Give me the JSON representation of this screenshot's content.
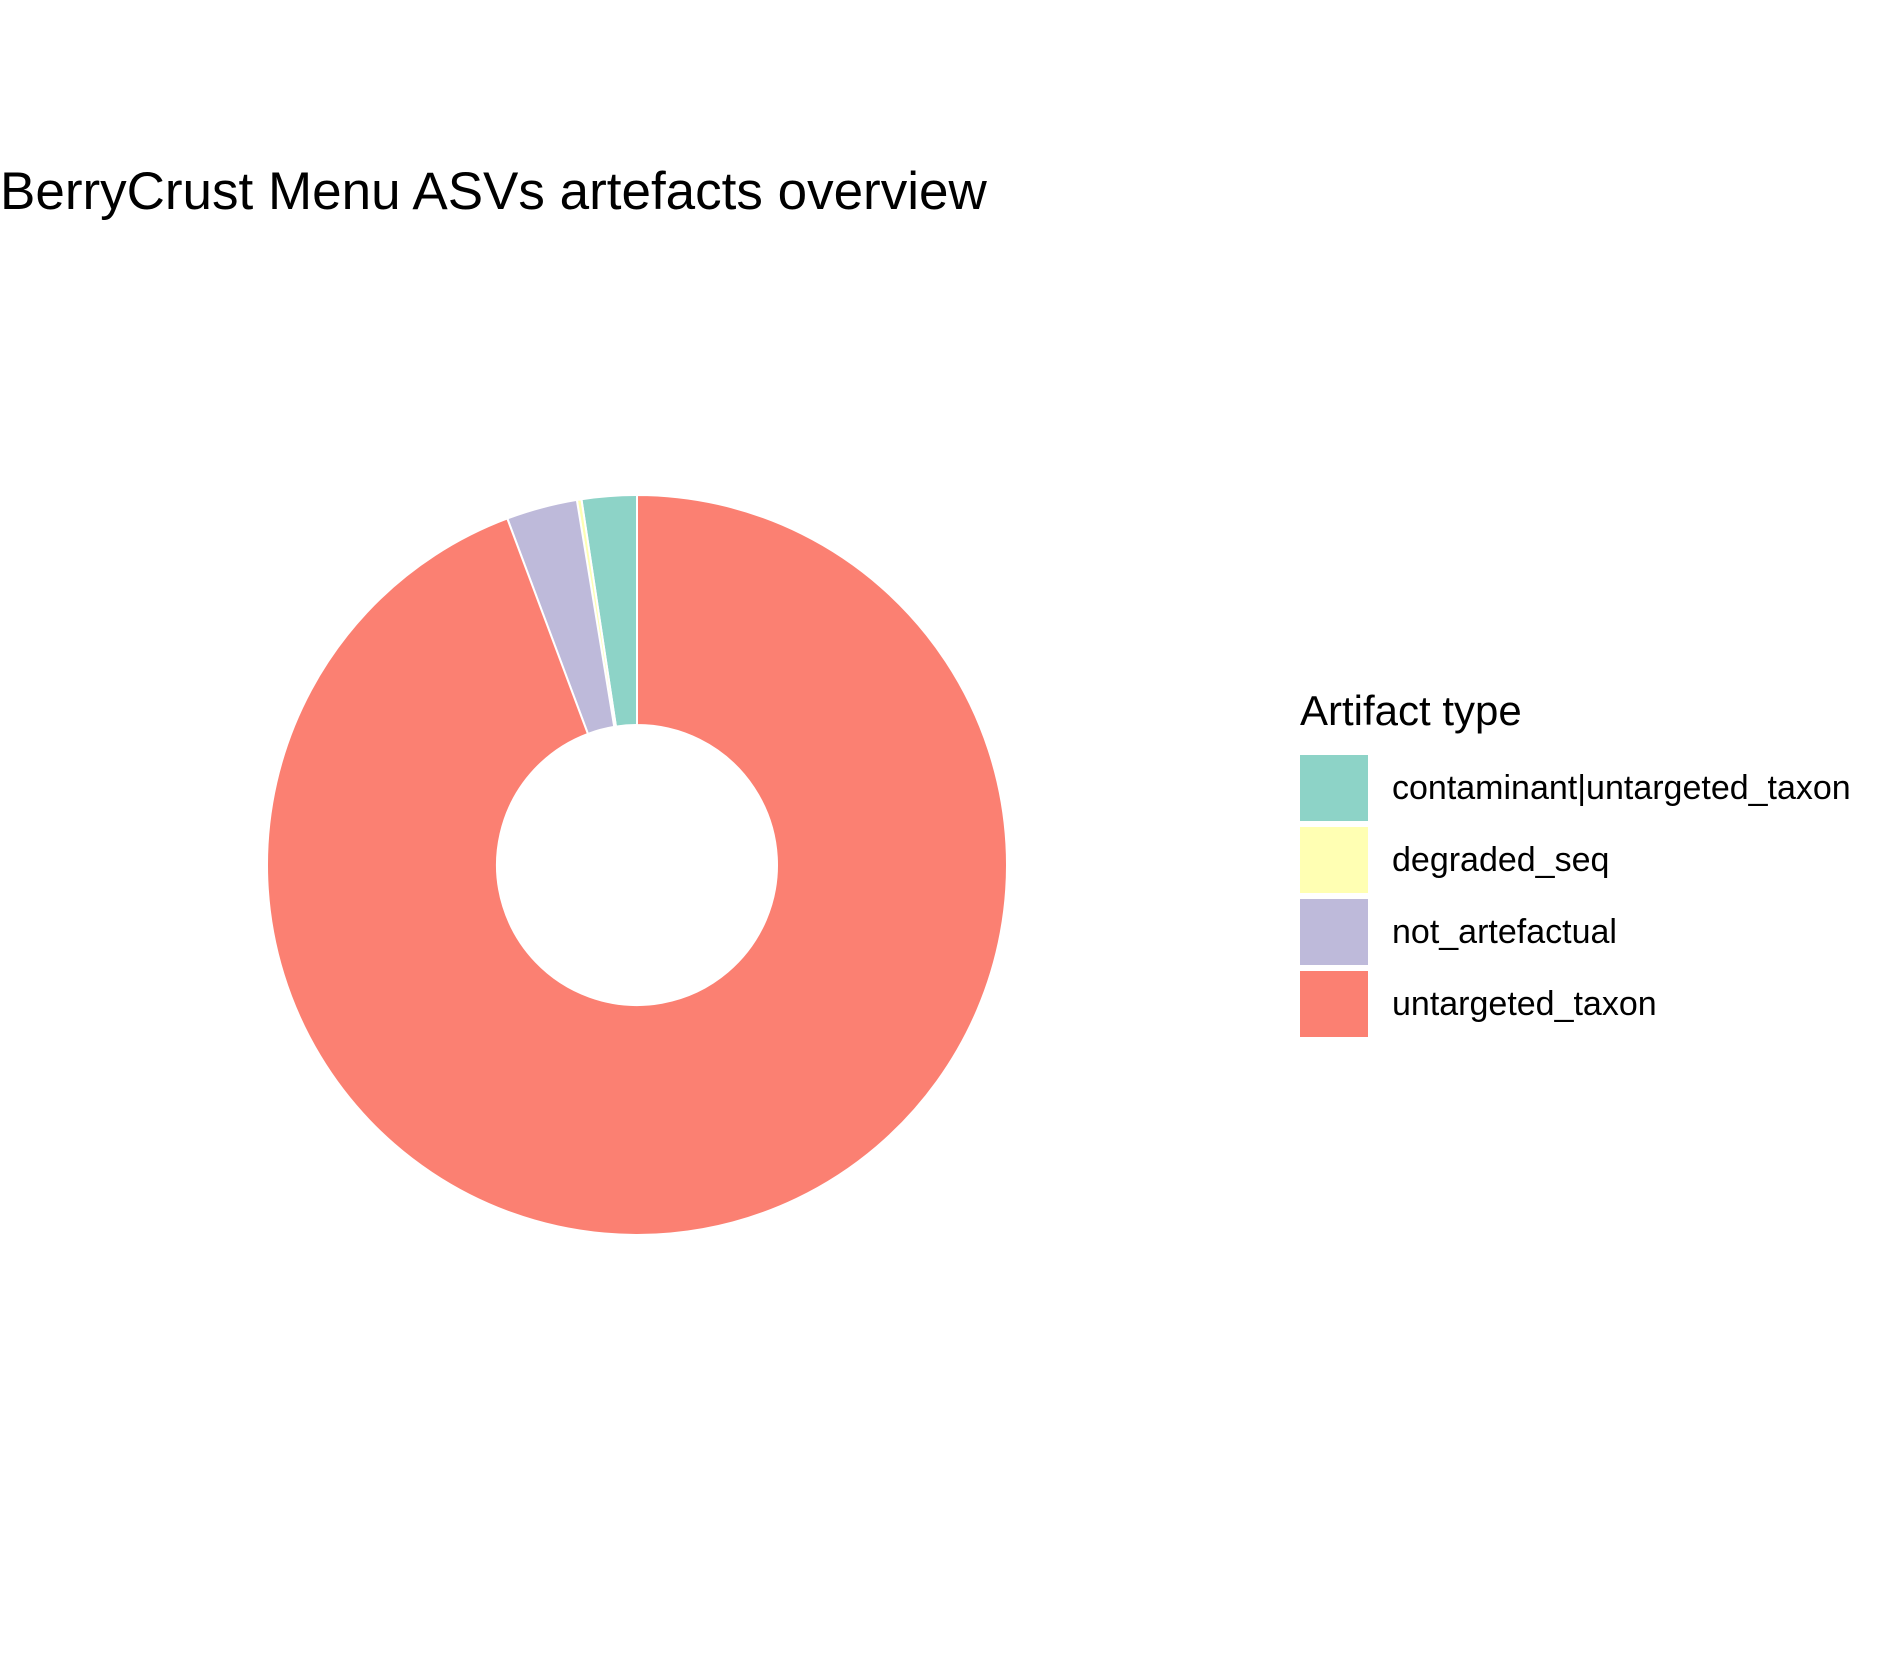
{
  "chart_data": {
    "type": "pie",
    "title": "BerryCrust Menu ASVs artefacts overview",
    "legend_title": "Artifact type",
    "legend_position": "right",
    "hole": true,
    "slices": [
      {
        "label": "contaminant|untargeted_taxon",
        "value": 2.4,
        "color": "#8DD3C7"
      },
      {
        "label": "degraded_seq",
        "value": 0.2,
        "color": "#FFFFB3"
      },
      {
        "label": "not_artefactual",
        "value": 3.1,
        "color": "#BEBADA"
      },
      {
        "label": "untargeted_taxon",
        "value": 94.3,
        "color": "#FB8072"
      }
    ]
  }
}
